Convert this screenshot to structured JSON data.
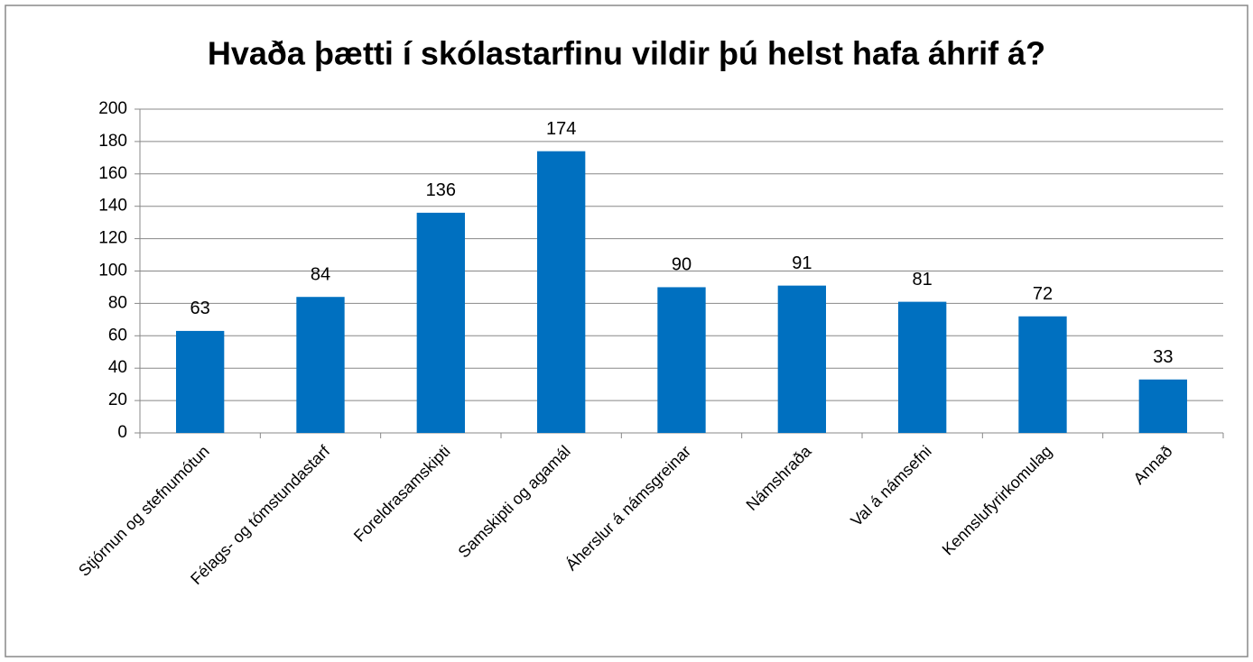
{
  "chart_data": {
    "type": "bar",
    "title": "Hvaða þætti í skólastarfinu vildir þú helst hafa áhrif á?",
    "categories": [
      "Stjórnun og stefnumótun",
      "Félags- og tómstundastarf",
      "Foreldrasamskipti",
      "Samskipti og agamál",
      "Áherslur á námsgreinar",
      "Námshraða",
      "Val á námsefni",
      "Kennslufyrirkomulag",
      "Annað"
    ],
    "values": [
      63,
      84,
      136,
      174,
      90,
      91,
      81,
      72,
      33
    ],
    "color": "#0070c0",
    "ylim": [
      0,
      200
    ],
    "yticks": [
      0,
      20,
      40,
      60,
      80,
      100,
      120,
      140,
      160,
      180,
      200
    ],
    "grid": true
  }
}
